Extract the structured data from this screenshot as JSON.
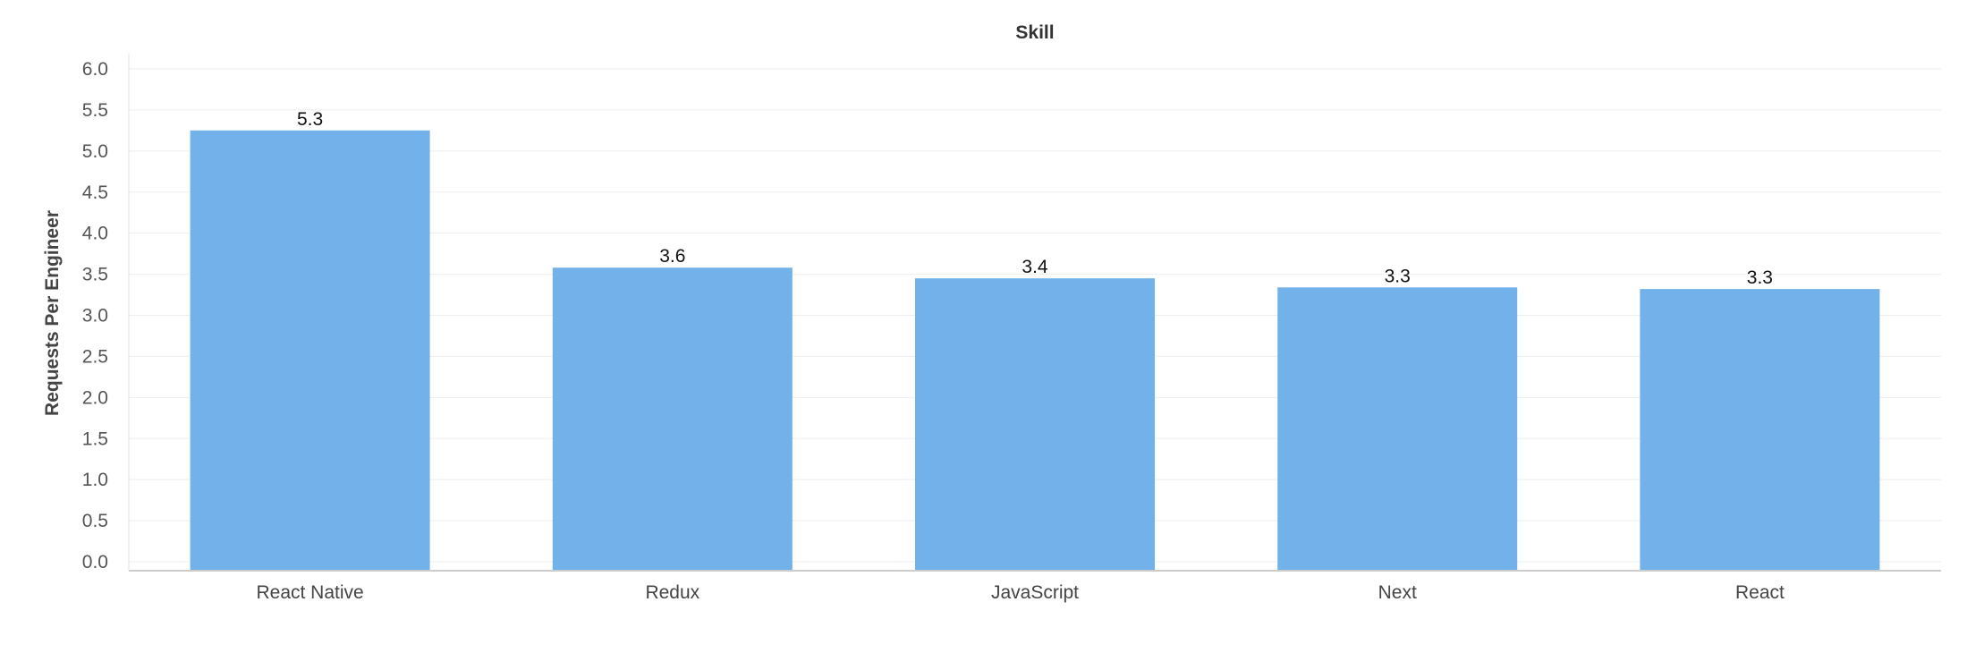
{
  "chart_data": {
    "type": "bar",
    "title": "Skill",
    "xlabel": "",
    "ylabel": "Requests Per Engineer",
    "categories": [
      "React Native",
      "Redux",
      "JavaScript",
      "Next",
      "React"
    ],
    "values": [
      5.25,
      3.58,
      3.45,
      3.34,
      3.32
    ],
    "value_labels": [
      "5.3",
      "3.6",
      "3.4",
      "3.3",
      "3.3"
    ],
    "ylim": [
      0,
      6
    ],
    "yticks": [
      "0.0",
      "0.5",
      "1.0",
      "1.5",
      "2.0",
      "2.5",
      "3.0",
      "3.5",
      "4.0",
      "4.5",
      "5.0",
      "5.5",
      "6.0"
    ],
    "grid": true,
    "legend": "none",
    "colors": {
      "bar": "#72b1ea",
      "grid": "#eeeeee",
      "axis": "#cccccc"
    }
  }
}
